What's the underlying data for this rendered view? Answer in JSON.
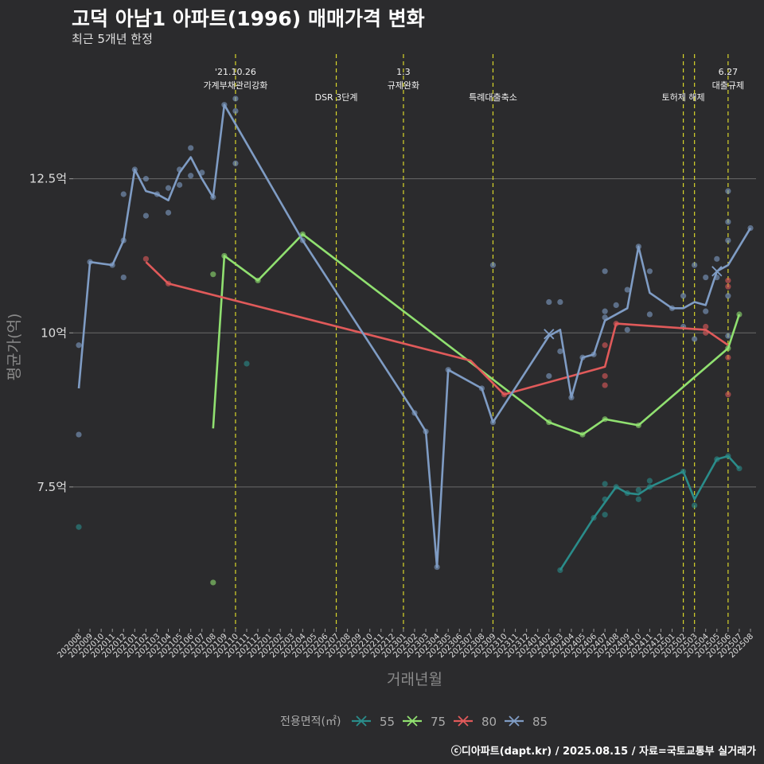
{
  "title": "고덕 아남1 아파트(1996) 매매가격 변화",
  "subtitle": "최근 5개년 한정",
  "footer": "ⓒ디아파트(dapt.kr) / 2025.08.15 / 자료=국토교통부 실거래가",
  "chart_data": {
    "type": "line",
    "xlabel": "거래년월",
    "ylabel": "평균가(억)",
    "ylim": [
      5.2,
      14.6
    ],
    "yticks": [
      7.5,
      10,
      12.5
    ],
    "ytick_labels": [
      "7.5억",
      "10억",
      "12.5억"
    ],
    "grid": true,
    "legend_title": "전용면적(㎡)",
    "legend_position": "bottom",
    "x_months": [
      "202008",
      "202009",
      "202010",
      "202011",
      "202012",
      "202101",
      "202102",
      "202103",
      "202104",
      "202105",
      "202106",
      "202107",
      "202108",
      "202109",
      "202110",
      "202111",
      "202112",
      "202201",
      "202202",
      "202203",
      "202204",
      "202205",
      "202206",
      "202207",
      "202208",
      "202209",
      "202210",
      "202211",
      "202212",
      "202301",
      "202302",
      "202303",
      "202304",
      "202305",
      "202306",
      "202307",
      "202308",
      "202309",
      "202310",
      "202311",
      "202312",
      "202401",
      "202402",
      "202403",
      "202404",
      "202405",
      "202406",
      "202407",
      "202408",
      "202409",
      "202410",
      "202411",
      "202412",
      "202501",
      "202502",
      "202503",
      "202504",
      "202505",
      "202506",
      "202507",
      "202508"
    ],
    "annotations": [
      {
        "x": "202110",
        "label": "'21.10.26\n가계부채관리강화"
      },
      {
        "x": "202207",
        "label": "DSR 3단계"
      },
      {
        "x": "202301",
        "label": "1.3\n규제완화"
      },
      {
        "x": "202309",
        "label": "특례대출축소"
      },
      {
        "x": "202502",
        "label": "토허제 해제"
      },
      {
        "x": "202503",
        "label": ""
      },
      {
        "x": "202506",
        "label": "6.27\n대출규제"
      }
    ],
    "series": [
      {
        "name": "55",
        "color": "#2a8c8a",
        "line": [
          [
            "202403",
            6.15
          ],
          [
            "202406",
            7.0
          ],
          [
            "202408",
            7.5
          ],
          [
            "202409",
            7.4
          ],
          [
            "202410",
            7.38
          ],
          [
            "202411",
            7.5
          ],
          [
            "202502",
            7.75
          ],
          [
            "202503",
            7.3
          ],
          [
            "202505",
            7.95
          ],
          [
            "202506",
            8.0
          ],
          [
            "202507",
            7.8
          ]
        ],
        "points": [
          [
            "202008",
            6.85
          ],
          [
            "202111",
            9.5
          ],
          [
            "202403",
            6.15
          ],
          [
            "202406",
            7.0
          ],
          [
            "202407",
            7.55
          ],
          [
            "202407",
            7.3
          ],
          [
            "202407",
            7.05
          ],
          [
            "202408",
            7.5
          ],
          [
            "202409",
            7.4
          ],
          [
            "202410",
            7.3
          ],
          [
            "202410",
            7.45
          ],
          [
            "202411",
            7.6
          ],
          [
            "202411",
            7.5
          ],
          [
            "202502",
            7.75
          ],
          [
            "202503",
            7.2
          ],
          [
            "202505",
            7.95
          ],
          [
            "202506",
            8.0
          ],
          [
            "202507",
            7.8
          ]
        ]
      },
      {
        "name": "75",
        "color": "#90e070",
        "line": [
          [
            "202108",
            8.45
          ],
          [
            "202109",
            11.25
          ],
          [
            "202112",
            10.85
          ],
          [
            "202204",
            11.6
          ],
          [
            "202402",
            8.55
          ],
          [
            "202405",
            8.35
          ],
          [
            "202407",
            8.6
          ],
          [
            "202410",
            8.5
          ],
          [
            "202506",
            9.75
          ],
          [
            "202507",
            10.3
          ]
        ],
        "points": [
          [
            "202108",
            10.95
          ],
          [
            "202108",
            5.95
          ],
          [
            "202109",
            11.25
          ],
          [
            "202112",
            10.85
          ],
          [
            "202204",
            11.6
          ],
          [
            "202402",
            8.55
          ],
          [
            "202405",
            8.35
          ],
          [
            "202407",
            8.6
          ],
          [
            "202410",
            8.5
          ],
          [
            "202506",
            9.75
          ],
          [
            "202507",
            10.3
          ]
        ]
      },
      {
        "name": "80",
        "color": "#e05a5a",
        "line": [
          [
            "202102",
            11.15
          ],
          [
            "202104",
            10.8
          ],
          [
            "202307",
            9.55
          ],
          [
            "202310",
            9.0
          ],
          [
            "202407",
            9.45
          ],
          [
            "202408",
            10.15
          ],
          [
            "202504",
            10.05
          ],
          [
            "202506",
            9.8
          ]
        ],
        "points": [
          [
            "202102",
            11.2
          ],
          [
            "202104",
            10.8
          ],
          [
            "202310",
            9.0
          ],
          [
            "202407",
            9.8
          ],
          [
            "202407",
            9.3
          ],
          [
            "202407",
            9.15
          ],
          [
            "202408",
            10.15
          ],
          [
            "202504",
            10.1
          ],
          [
            "202504",
            10.0
          ],
          [
            "202506",
            9.6
          ],
          [
            "202506",
            9.0
          ],
          [
            "202506",
            10.85
          ],
          [
            "202506",
            10.75
          ]
        ]
      },
      {
        "name": "85",
        "color": "#7f9cc4",
        "line": [
          [
            "202008",
            9.1
          ],
          [
            "202009",
            11.15
          ],
          [
            "202011",
            11.1
          ],
          [
            "202012",
            11.5
          ],
          [
            "202101",
            12.65
          ],
          [
            "202102",
            12.3
          ],
          [
            "202103",
            12.25
          ],
          [
            "202104",
            12.15
          ],
          [
            "202105",
            12.6
          ],
          [
            "202106",
            12.85
          ],
          [
            "202107",
            12.5
          ],
          [
            "202108",
            12.2
          ],
          [
            "202109",
            13.7
          ],
          [
            "202204",
            11.5
          ],
          [
            "202302",
            8.7
          ],
          [
            "202303",
            8.4
          ],
          [
            "202304",
            6.2
          ],
          [
            "202305",
            9.4
          ],
          [
            "202308",
            9.1
          ],
          [
            "202309",
            8.55
          ],
          [
            "202402",
            9.95
          ],
          [
            "202403",
            10.05
          ],
          [
            "202404",
            8.95
          ],
          [
            "202405",
            9.6
          ],
          [
            "202406",
            9.65
          ],
          [
            "202407",
            10.2
          ],
          [
            "202409",
            10.4
          ],
          [
            "202410",
            11.4
          ],
          [
            "202411",
            10.65
          ],
          [
            "202501",
            10.4
          ],
          [
            "202502",
            10.4
          ],
          [
            "202503",
            10.5
          ],
          [
            "202504",
            10.45
          ],
          [
            "202505",
            11.0
          ],
          [
            "202506",
            11.1
          ],
          [
            "202508",
            11.7
          ]
        ],
        "points": [
          [
            "202008",
            9.8
          ],
          [
            "202008",
            8.35
          ],
          [
            "202009",
            11.15
          ],
          [
            "202011",
            11.1
          ],
          [
            "202012",
            11.5
          ],
          [
            "202012",
            10.9
          ],
          [
            "202012",
            12.25
          ],
          [
            "202101",
            12.65
          ],
          [
            "202102",
            12.5
          ],
          [
            "202102",
            11.9
          ],
          [
            "202103",
            12.25
          ],
          [
            "202104",
            12.35
          ],
          [
            "202104",
            11.95
          ],
          [
            "202105",
            12.4
          ],
          [
            "202105",
            12.65
          ],
          [
            "202106",
            12.55
          ],
          [
            "202106",
            13.0
          ],
          [
            "202107",
            12.6
          ],
          [
            "202108",
            12.2
          ],
          [
            "202109",
            13.7
          ],
          [
            "202110",
            13.8
          ],
          [
            "202110",
            13.6
          ],
          [
            "202110",
            12.75
          ],
          [
            "202204",
            11.5
          ],
          [
            "202302",
            8.7
          ],
          [
            "202303",
            8.4
          ],
          [
            "202304",
            6.2
          ],
          [
            "202305",
            9.4
          ],
          [
            "202308",
            9.1
          ],
          [
            "202309",
            11.1
          ],
          [
            "202309",
            8.55
          ],
          [
            "202402",
            10.5
          ],
          [
            "202402",
            9.3
          ],
          [
            "202403",
            10.5
          ],
          [
            "202403",
            9.7
          ],
          [
            "202404",
            8.95
          ],
          [
            "202405",
            9.6
          ],
          [
            "202406",
            9.65
          ],
          [
            "202407",
            11.0
          ],
          [
            "202407",
            10.35
          ],
          [
            "202407",
            10.25
          ],
          [
            "202408",
            10.45
          ],
          [
            "202409",
            10.7
          ],
          [
            "202409",
            10.05
          ],
          [
            "202410",
            11.4
          ],
          [
            "202411",
            11.0
          ],
          [
            "202411",
            10.3
          ],
          [
            "202501",
            10.4
          ],
          [
            "202502",
            10.6
          ],
          [
            "202502",
            10.1
          ],
          [
            "202503",
            11.1
          ],
          [
            "202503",
            9.9
          ],
          [
            "202504",
            10.9
          ],
          [
            "202504",
            10.35
          ],
          [
            "202505",
            11.2
          ],
          [
            "202505",
            10.9
          ],
          [
            "202506",
            12.3
          ],
          [
            "202506",
            11.8
          ],
          [
            "202506",
            11.5
          ],
          [
            "202506",
            10.6
          ],
          [
            "202506",
            9.95
          ],
          [
            "202508",
            11.7
          ]
        ],
        "cross": [
          [
            "202402",
            9.98
          ],
          [
            "202505",
            11.0
          ]
        ]
      }
    ]
  }
}
